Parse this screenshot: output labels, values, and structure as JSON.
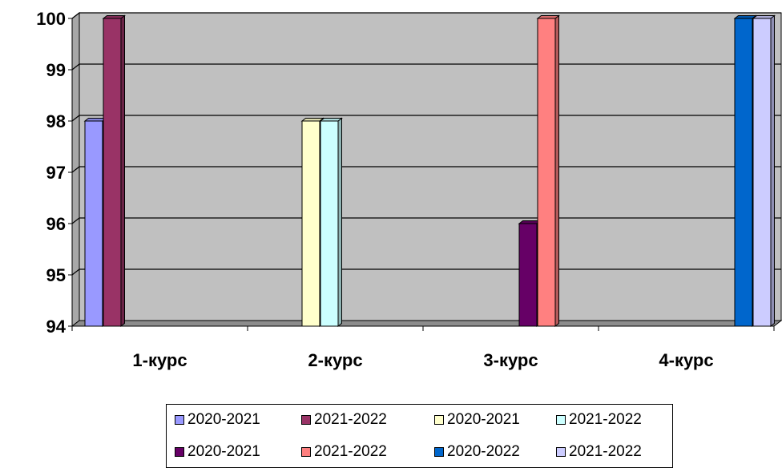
{
  "chart_data": {
    "type": "bar",
    "title": "",
    "xlabel": "",
    "ylabel": "",
    "ylim": [
      94,
      100
    ],
    "yticks": [
      "94",
      "95",
      "96",
      "97",
      "98",
      "99",
      "100"
    ],
    "categories": [
      "1-курс",
      "2-курс",
      "3-курс",
      "4-курс"
    ],
    "series": [
      {
        "name": "2020-2021",
        "color": "#9999ff",
        "values": [
          98,
          null,
          null,
          null
        ]
      },
      {
        "name": "2021-2022",
        "color": "#993366",
        "values": [
          100,
          null,
          null,
          null
        ]
      },
      {
        "name": "2020-2021",
        "color": "#ffffcc",
        "values": [
          null,
          98,
          null,
          null
        ]
      },
      {
        "name": "2021-2022",
        "color": "#ccffff",
        "values": [
          null,
          98,
          null,
          null
        ]
      },
      {
        "name": "2020-2021",
        "color": "#660066",
        "values": [
          null,
          null,
          96,
          null
        ]
      },
      {
        "name": "2021-2022",
        "color": "#ff8080",
        "values": [
          null,
          null,
          100,
          null
        ]
      },
      {
        "name": "2020-2022",
        "color": "#0066cc",
        "values": [
          null,
          null,
          null,
          100
        ]
      },
      {
        "name": "2021-2022",
        "color": "#ccccff",
        "values": [
          null,
          null,
          null,
          100
        ]
      }
    ],
    "grid": true,
    "legend_position": "bottom",
    "background": "#c0c0c0"
  }
}
